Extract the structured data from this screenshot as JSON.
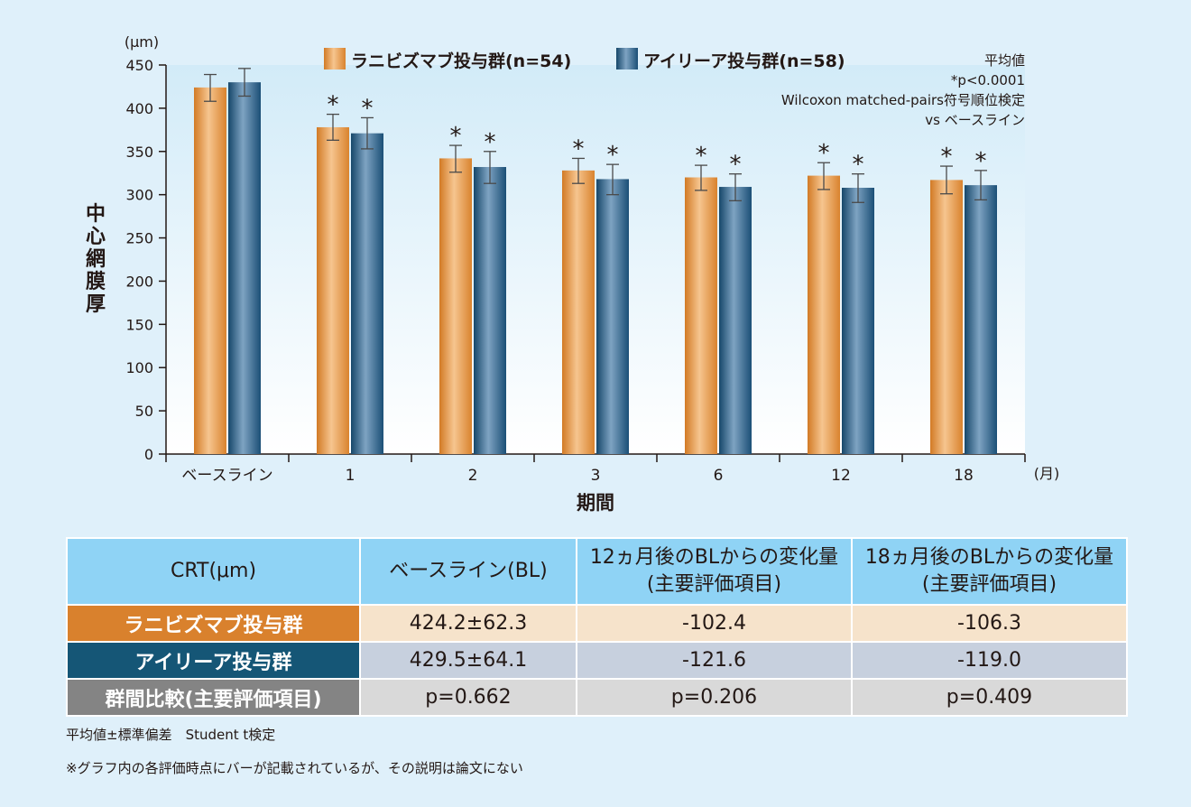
{
  "chart_data": {
    "type": "bar",
    "ylabel": "中心網膜厚",
    "yunit": "(μm)",
    "xlabel": "期間",
    "xunit": "(月)",
    "ylim": [
      0,
      450
    ],
    "yticks": [
      0,
      50,
      100,
      150,
      200,
      250,
      300,
      350,
      400,
      450
    ],
    "categories": [
      "ベースライン",
      "1",
      "2",
      "3",
      "6",
      "12",
      "18"
    ],
    "series": [
      {
        "name": "ラニビズマブ投与群(n=54)",
        "color": "#e0913c",
        "values": [
          424,
          378,
          342,
          328,
          320,
          322,
          317
        ],
        "error_low": [
          408,
          363,
          326,
          313,
          305,
          306,
          301
        ],
        "error_high": [
          439,
          393,
          357,
          342,
          334,
          337,
          333
        ]
      },
      {
        "name": "アイリーア投与群(n=58)",
        "color": "#1f5a7f",
        "values": [
          430,
          371,
          332,
          318,
          309,
          308,
          311
        ],
        "error_low": [
          414,
          353,
          313,
          300,
          293,
          291,
          294
        ],
        "error_high": [
          446,
          389,
          350,
          335,
          324,
          324,
          328
        ]
      }
    ],
    "significance_marker": "*",
    "significant_categories": [
      1,
      2,
      3,
      4,
      5,
      6
    ],
    "annotations": [
      "平均値",
      "*p<0.0001",
      "Wilcoxon matched-pairs符号順位検定",
      "vs ベースライン"
    ],
    "legend_position": "top-center",
    "grid": false
  },
  "table": {
    "headers": [
      "CRT(μm)",
      "ベースライン(BL)",
      "12ヵ月後のBLからの変化量\n(主要評価項目)",
      "18ヵ月後のBLからの変化量\n(主要評価項目)"
    ],
    "rows": [
      {
        "label": "ラニビズマブ投与群",
        "values": [
          "424.2±62.3",
          "-102.4",
          "-106.3"
        ]
      },
      {
        "label": "アイリーア投与群",
        "values": [
          "429.5±64.1",
          "-121.6",
          "-119.0"
        ]
      },
      {
        "label": "群間比較(主要評価項目)",
        "values": [
          "p=0.662",
          "p=0.206",
          "p=0.409"
        ]
      }
    ]
  },
  "notes": {
    "stats": "平均値±標準偏差　Student t検定",
    "remark": "※グラフ内の各評価時点にバーが記載されているが、その説明は論文にない"
  }
}
